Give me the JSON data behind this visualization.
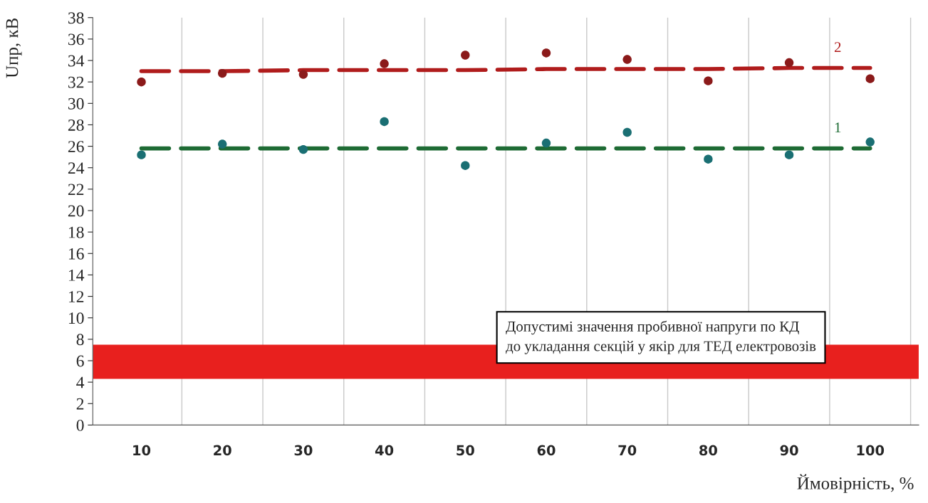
{
  "chart_data": {
    "type": "scatter",
    "categories": [
      "10",
      "20",
      "30",
      "40",
      "50",
      "60",
      "70",
      "80",
      "90",
      "100"
    ],
    "series": [
      {
        "marker": "circle",
        "color": "#8b1a1a",
        "values": [
          32.0,
          32.8,
          32.7,
          33.7,
          34.5,
          34.7,
          34.1,
          32.1,
          33.8,
          32.3
        ]
      },
      {
        "type": "line",
        "name": "2",
        "color": "#b01c1c",
        "line_style": "dashed",
        "values": [
          33.0,
          33.0,
          33.1,
          33.1,
          33.1,
          33.2,
          33.2,
          33.2,
          33.3,
          33.3
        ]
      },
      {
        "marker": "circle",
        "color": "#1a6f73",
        "values": [
          25.2,
          26.2,
          25.7,
          28.3,
          24.2,
          26.3,
          27.3,
          24.8,
          25.2,
          26.4
        ]
      },
      {
        "type": "line",
        "name": "1",
        "color": "#1e6b34",
        "line_style": "dashed",
        "values": [
          25.8,
          25.8,
          25.8,
          25.8,
          25.8,
          25.8,
          25.8,
          25.8,
          25.8,
          25.8
        ]
      }
    ],
    "ylabel": "Uпр, кВ",
    "xlabel": "Ймовірність, %",
    "ylim": [
      0,
      38
    ],
    "yticks": [
      0,
      2,
      4,
      6,
      8,
      10,
      12,
      14,
      16,
      18,
      20,
      22,
      24,
      26,
      28,
      30,
      32,
      34,
      36,
      38
    ],
    "grid": "x",
    "bands": [
      {
        "axis": "y",
        "from": 4.3,
        "to": 7.5,
        "color": "#e8201e"
      }
    ],
    "annotations": [
      "Допустимі значення пробивної напруги по КД\nдо укладання секцій у якір для ТЕД електровозів"
    ]
  }
}
